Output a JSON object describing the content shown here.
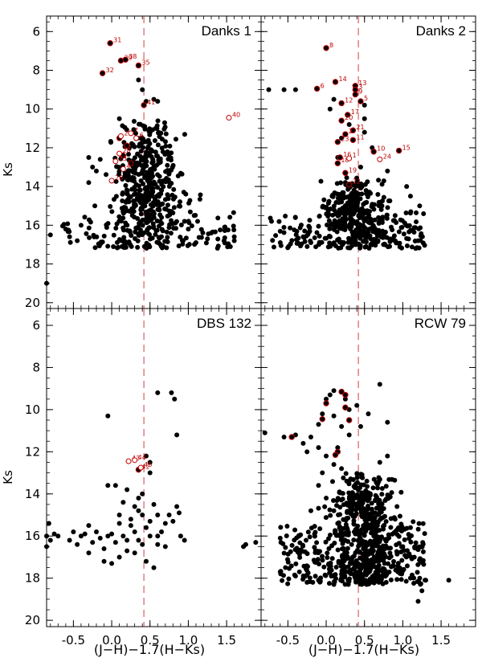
{
  "figure": {
    "xlabel": "(J−H)−1.7(H−Ks)",
    "ylabel": "Ks"
  },
  "colors": {
    "field": "#000000",
    "member": "#c00000",
    "sep_line": "#d04040"
  },
  "chart_data": [
    {
      "type": "scatter",
      "title": "Danks 1",
      "xlim": [
        -0.85,
        1.95
      ],
      "ylim": [
        20.3,
        5.2
      ],
      "x_ticks": [
        "-0.5",
        "0.0",
        "0.5",
        "1.0",
        "1.5"
      ],
      "y_ticks": [
        "6",
        "8",
        "10",
        "12",
        "14",
        "16",
        "18",
        "20"
      ],
      "separator_x": 0.42,
      "density": {
        "n": 560,
        "x_center": 0.45,
        "x_spread": 0.22,
        "y_min": 10.5,
        "y_max": 17.2,
        "tail_x_max": 1.6
      },
      "field_points": [
        [
          -0.8,
          16.5
        ],
        [
          -0.85,
          19.0
        ],
        [
          -0.6,
          16.2
        ],
        [
          -0.55,
          16.6
        ],
        [
          -0.3,
          12.5
        ],
        [
          -0.25,
          13.0
        ],
        [
          -0.3,
          13.8
        ],
        [
          -0.2,
          13.2
        ],
        [
          -0.15,
          12.6
        ],
        [
          0.1,
          10.5
        ],
        [
          0.6,
          9.6
        ],
        [
          0.55,
          9.5
        ],
        [
          1.6,
          16.6
        ],
        [
          1.6,
          16.8
        ],
        [
          1.3,
          16.4
        ],
        [
          1.25,
          16.7
        ],
        [
          0.35,
          8.5
        ],
        [
          0.4,
          9.0
        ],
        [
          0.45,
          9.6
        ],
        [
          -0.4,
          16.0
        ],
        [
          -0.45,
          16.8
        ],
        [
          0.95,
          15.8
        ],
        [
          1.0,
          16.2
        ],
        [
          1.1,
          16.9
        ]
      ],
      "members_filled": [
        {
          "x": -0.02,
          "y": 6.6,
          "label": "31"
        },
        {
          "x": 0.12,
          "y": 7.5,
          "label": "39"
        },
        {
          "x": 0.18,
          "y": 7.45,
          "label": "38"
        },
        {
          "x": 0.35,
          "y": 7.75,
          "label": "35"
        },
        {
          "x": -0.12,
          "y": 8.15,
          "label": "32"
        },
        {
          "x": 0.42,
          "y": 9.8,
          "label": "41"
        },
        {
          "x": 0.1,
          "y": 11.5,
          "label": ""
        },
        {
          "x": 0.2,
          "y": 11.9,
          "label": ""
        },
        {
          "x": 0.15,
          "y": 12.4,
          "label": ""
        },
        {
          "x": 0.25,
          "y": 12.8,
          "label": ""
        }
      ],
      "members_open": [
        {
          "x": 1.53,
          "y": 10.45,
          "label": "40"
        },
        {
          "x": 0.0,
          "y": 13.7,
          "label": "26"
        },
        {
          "x": 0.12,
          "y": 11.4,
          "label": "2"
        },
        {
          "x": 0.25,
          "y": 11.25,
          "label": "7"
        },
        {
          "x": 0.32,
          "y": 11.5,
          "label": "6"
        },
        {
          "x": 0.1,
          "y": 12.3,
          "label": "28"
        },
        {
          "x": 0.05,
          "y": 12.7,
          "label": "23"
        },
        {
          "x": 0.15,
          "y": 13.1,
          "label": "4"
        }
      ]
    },
    {
      "type": "scatter",
      "title": "Danks 2",
      "xlim": [
        -0.85,
        1.95
      ],
      "ylim": [
        20.3,
        5.2
      ],
      "x_ticks": [
        "-0.5",
        "0.0",
        "0.5",
        "1.0",
        "1.5"
      ],
      "y_ticks": [
        "6",
        "8",
        "10",
        "12",
        "14",
        "16",
        "18",
        "20"
      ],
      "separator_x": 0.42,
      "density": {
        "n": 470,
        "x_center": 0.35,
        "x_spread": 0.2,
        "y_min": 13.5,
        "y_max": 17.2,
        "tail_x_max": 1.3
      },
      "field_points": [
        [
          -0.75,
          9.0
        ],
        [
          -0.55,
          9.0
        ],
        [
          -0.4,
          9.0
        ],
        [
          1.22,
          15.0
        ],
        [
          1.1,
          14.5
        ],
        [
          1.05,
          14.0
        ],
        [
          0.8,
          13.2
        ],
        [
          0.9,
          15.5
        ],
        [
          -0.6,
          16.9
        ],
        [
          -0.3,
          16.6
        ],
        [
          -0.2,
          16.9
        ],
        [
          1.2,
          16.8
        ],
        [
          0.5,
          9.8
        ],
        [
          0.5,
          10.5
        ],
        [
          0.5,
          11.2
        ],
        [
          0.6,
          12.0
        ],
        [
          0.3,
          10.8
        ],
        [
          0.2,
          11.5
        ],
        [
          0.15,
          12.5
        ],
        [
          0.45,
          13.0
        ],
        [
          0.05,
          10.0
        ],
        [
          0.1,
          9.5
        ]
      ],
      "members_filled": [
        {
          "x": 0.0,
          "y": 6.85,
          "label": "8"
        },
        {
          "x": 0.12,
          "y": 8.6,
          "label": "14"
        },
        {
          "x": -0.12,
          "y": 8.95,
          "label": "6"
        },
        {
          "x": 0.38,
          "y": 8.8,
          "label": "13"
        },
        {
          "x": 0.38,
          "y": 9.0,
          "label": "3"
        },
        {
          "x": 0.38,
          "y": 9.25,
          "label": "9"
        },
        {
          "x": 0.45,
          "y": 9.6,
          "label": "5"
        },
        {
          "x": 0.2,
          "y": 9.7,
          "label": "12"
        },
        {
          "x": 0.28,
          "y": 10.3,
          "label": "17"
        },
        {
          "x": 0.2,
          "y": 10.6,
          "label": "20"
        },
        {
          "x": 0.35,
          "y": 11.1,
          "label": "21"
        },
        {
          "x": 0.25,
          "y": 11.3,
          "label": "2"
        },
        {
          "x": 0.15,
          "y": 11.7,
          "label": "23"
        },
        {
          "x": 0.35,
          "y": 11.6,
          "label": "11"
        },
        {
          "x": 0.62,
          "y": 12.2,
          "label": "10"
        },
        {
          "x": 0.95,
          "y": 12.15,
          "label": "15"
        },
        {
          "x": 0.18,
          "y": 12.5,
          "label": "16"
        },
        {
          "x": 0.15,
          "y": 12.8,
          "label": "18"
        },
        {
          "x": 0.25,
          "y": 13.3,
          "label": "19"
        },
        {
          "x": 0.3,
          "y": 13.9,
          "label": "22"
        }
      ],
      "members_open": [
        {
          "x": 0.7,
          "y": 12.6,
          "label": "24"
        },
        {
          "x": 0.3,
          "y": 12.55,
          "label": "1"
        }
      ]
    },
    {
      "type": "scatter",
      "title": "DBS 132",
      "xlim": [
        -0.85,
        1.95
      ],
      "ylim": [
        20.3,
        5.2
      ],
      "x_ticks": [
        "-0.5",
        "0.0",
        "0.5",
        "1.0",
        "1.5"
      ],
      "y_ticks": [
        "6",
        "8",
        "10",
        "12",
        "14",
        "16",
        "18",
        "20"
      ],
      "separator_x": 0.42,
      "density": {
        "n": 0,
        "x_center": 0.3,
        "x_spread": 0.3,
        "y_min": 15.0,
        "y_max": 17.5,
        "tail_x_max": 1.0
      },
      "field_points": [
        [
          -0.85,
          16.5
        ],
        [
          -0.85,
          16.0
        ],
        [
          -0.8,
          16.2
        ],
        [
          -0.75,
          15.9
        ],
        [
          -0.82,
          15.4
        ],
        [
          -0.7,
          16.0
        ],
        [
          -0.55,
          16.2
        ],
        [
          -0.5,
          15.8
        ],
        [
          -0.45,
          16.4
        ],
        [
          -0.4,
          16.0
        ],
        [
          -0.35,
          15.9
        ],
        [
          -0.3,
          15.5
        ],
        [
          -0.2,
          15.8
        ],
        [
          -0.15,
          16.1
        ],
        [
          -0.1,
          16.6
        ],
        [
          -0.05,
          16.0
        ],
        [
          0.0,
          15.9
        ],
        [
          0.05,
          16.3
        ],
        [
          0.1,
          15.4
        ],
        [
          0.15,
          16.0
        ],
        [
          0.2,
          16.2
        ],
        [
          0.25,
          15.5
        ],
        [
          0.3,
          15.8
        ],
        [
          0.35,
          14.8
        ],
        [
          0.4,
          15.0
        ],
        [
          0.45,
          15.6
        ],
        [
          0.5,
          15.3
        ],
        [
          0.55,
          14.5
        ],
        [
          0.6,
          15.0
        ],
        [
          0.65,
          15.8
        ],
        [
          0.7,
          15.4
        ],
        [
          0.75,
          15.0
        ],
        [
          0.8,
          15.3
        ],
        [
          0.85,
          14.6
        ],
        [
          0.88,
          14.9
        ],
        [
          0.9,
          16.0
        ],
        [
          0.95,
          16.2
        ],
        [
          0.55,
          17.5
        ],
        [
          0.3,
          16.8
        ],
        [
          0.45,
          17.2
        ],
        [
          0.2,
          16.7
        ],
        [
          0.1,
          17.0
        ],
        [
          0.0,
          17.3
        ],
        [
          -0.3,
          16.8
        ],
        [
          -0.1,
          17.2
        ],
        [
          0.6,
          16.4
        ],
        [
          0.7,
          16.5
        ],
        [
          0.35,
          16.2
        ],
        [
          0.4,
          16.4
        ],
        [
          0.5,
          16.0
        ],
        [
          0.05,
          13.6
        ],
        [
          -0.05,
          13.6
        ],
        [
          0.2,
          13.8
        ],
        [
          0.35,
          14.2
        ],
        [
          0.4,
          14.0
        ],
        [
          0.3,
          14.6
        ],
        [
          0.15,
          14.4
        ],
        [
          0.1,
          15.0
        ],
        [
          0.6,
          9.2
        ],
        [
          0.78,
          9.2
        ],
        [
          0.82,
          9.5
        ],
        [
          -0.05,
          10.3
        ],
        [
          0.45,
          12.2
        ],
        [
          0.5,
          12.5
        ],
        [
          0.5,
          13.0
        ],
        [
          0.85,
          11.2
        ],
        [
          1.75,
          16.4
        ],
        [
          1.72,
          16.5
        ],
        [
          1.88,
          16.3
        ],
        [
          0.6,
          16.0
        ],
        [
          -0.25,
          16.3
        ],
        [
          0.25,
          15.2
        ]
      ],
      "members_filled": [
        {
          "x": 0.35,
          "y": 12.85,
          "label": "42"
        }
      ],
      "members_open": [
        {
          "x": 0.22,
          "y": 12.45,
          "label": "43"
        },
        {
          "x": 0.3,
          "y": 12.4,
          "label": "44"
        },
        {
          "x": 0.38,
          "y": 12.75,
          "label": "45"
        }
      ]
    },
    {
      "type": "scatter",
      "title": "RCW 79",
      "xlim": [
        -0.85,
        1.95
      ],
      "ylim": [
        20.3,
        5.2
      ],
      "x_ticks": [
        "-0.5",
        "0.0",
        "0.5",
        "1.0",
        "1.5"
      ],
      "y_ticks": [
        "6",
        "8",
        "10",
        "12",
        "14",
        "16",
        "18",
        "20"
      ],
      "separator_x": 0.42,
      "density": {
        "n": 780,
        "x_center": 0.5,
        "x_spread": 0.2,
        "y_min": 13.0,
        "y_max": 18.3,
        "tail_x_max": 1.3
      },
      "field_points": [
        [
          -0.8,
          11.1
        ],
        [
          -0.55,
          11.3
        ],
        [
          -0.4,
          11.2
        ],
        [
          -0.3,
          11.6
        ],
        [
          -0.2,
          11.3
        ],
        [
          -0.25,
          12.0
        ],
        [
          -0.1,
          11.8
        ],
        [
          0.0,
          12.2
        ],
        [
          0.1,
          12.6
        ],
        [
          -0.05,
          13.0
        ],
        [
          -0.6,
          16.1
        ],
        [
          -0.6,
          17.7
        ],
        [
          -0.35,
          17.7
        ],
        [
          -0.4,
          17.9
        ],
        [
          -0.25,
          18.2
        ],
        [
          -0.1,
          18.1
        ],
        [
          0.1,
          18.3
        ],
        [
          0.2,
          18.0
        ],
        [
          1.1,
          18.0
        ],
        [
          1.3,
          18.1
        ],
        [
          1.25,
          18.6
        ],
        [
          1.6,
          18.1
        ],
        [
          1.2,
          19.1
        ],
        [
          0.7,
          8.8
        ],
        [
          0.8,
          10.6
        ],
        [
          0.8,
          12.2
        ],
        [
          0.7,
          12.5
        ],
        [
          0.55,
          10.2
        ],
        [
          0.45,
          10.8
        ],
        [
          0.3,
          11.2
        ],
        [
          0.15,
          11.8
        ],
        [
          0.2,
          12.8
        ],
        [
          0.3,
          13.4
        ],
        [
          0.35,
          14.0
        ],
        [
          0.05,
          9.3
        ],
        [
          0.0,
          9.5
        ],
        [
          0.1,
          9.1
        ],
        [
          0.25,
          9.5
        ],
        [
          0.3,
          10.0
        ],
        [
          0.4,
          9.8
        ],
        [
          0.1,
          10.3
        ],
        [
          0.2,
          10.8
        ],
        [
          -0.05,
          10.2
        ],
        [
          -0.1,
          10.7
        ],
        [
          0.9,
          15.2
        ],
        [
          1.1,
          15.6
        ],
        [
          1.0,
          16.5
        ],
        [
          0.95,
          17.5
        ],
        [
          1.15,
          17.0
        ],
        [
          -0.2,
          14.8
        ],
        [
          -0.1,
          13.6
        ],
        [
          0.0,
          14.2
        ],
        [
          0.1,
          14.8
        ],
        [
          0.15,
          15.4
        ]
      ],
      "members_filled": [
        {
          "x": 0.2,
          "y": 9.15,
          "label": ""
        },
        {
          "x": 0.25,
          "y": 9.3,
          "label": ""
        },
        {
          "x": 0.0,
          "y": 9.7,
          "label": ""
        },
        {
          "x": 0.25,
          "y": 9.9,
          "label": ""
        },
        {
          "x": -0.05,
          "y": 10.45,
          "label": ""
        },
        {
          "x": 0.3,
          "y": 10.5,
          "label": ""
        },
        {
          "x": -0.45,
          "y": 11.3,
          "label": ""
        },
        {
          "x": 0.15,
          "y": 12.0,
          "label": ""
        },
        {
          "x": 0.12,
          "y": 12.15,
          "label": ""
        }
      ],
      "members_open": []
    }
  ]
}
